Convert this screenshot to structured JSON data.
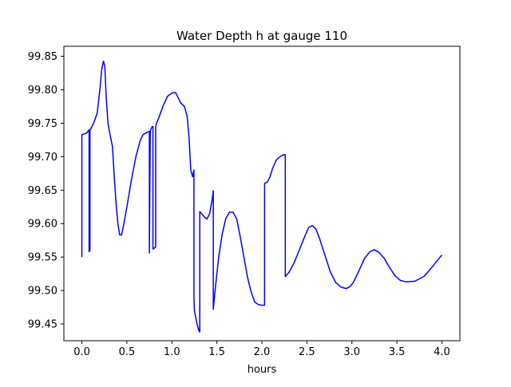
{
  "chart_data": {
    "type": "line",
    "title": "Water Depth h at gauge 110",
    "xlabel": "hours",
    "ylabel": "",
    "xlim": [
      -0.2,
      4.2
    ],
    "ylim": [
      99.425,
      99.865
    ],
    "xticks": [
      0.0,
      0.5,
      1.0,
      1.5,
      2.0,
      2.5,
      3.0,
      3.5,
      4.0
    ],
    "xtick_labels": [
      "0.0",
      "0.5",
      "1.0",
      "1.5",
      "2.0",
      "2.5",
      "3.0",
      "3.5",
      "4.0"
    ],
    "yticks": [
      99.45,
      99.5,
      99.55,
      99.6,
      99.65,
      99.7,
      99.75,
      99.8,
      99.85
    ],
    "ytick_labels": [
      "99.45",
      "99.50",
      "99.55",
      "99.60",
      "99.65",
      "99.70",
      "99.75",
      "99.80",
      "99.85"
    ],
    "grid": false,
    "legend": "none",
    "series": [
      {
        "color": "#0000ff",
        "x": [
          0.0,
          0.0,
          0.05,
          0.08,
          0.08,
          0.09,
          0.09,
          0.1,
          0.13,
          0.17,
          0.2,
          0.22,
          0.24,
          0.255,
          0.27,
          0.29,
          0.31,
          0.34,
          0.36,
          0.38,
          0.4,
          0.42,
          0.44,
          0.46,
          0.48,
          0.5,
          0.55,
          0.6,
          0.65,
          0.68,
          0.72,
          0.75,
          0.75,
          0.76,
          0.78,
          0.79,
          0.79,
          0.82,
          0.82,
          0.83,
          0.86,
          0.9,
          0.95,
          1.0,
          1.04,
          1.07,
          1.1,
          1.14,
          1.17,
          1.19,
          1.21,
          1.23,
          1.245,
          1.245,
          1.25,
          1.28,
          1.3,
          1.31,
          1.31,
          1.33,
          1.36,
          1.39,
          1.42,
          1.45,
          1.46,
          1.46,
          1.48,
          1.52,
          1.56,
          1.6,
          1.64,
          1.68,
          1.72,
          1.76,
          1.8,
          1.84,
          1.88,
          1.92,
          1.96,
          2.0,
          2.02,
          2.03,
          2.03,
          2.06,
          2.09,
          2.12,
          2.16,
          2.2,
          2.24,
          2.26,
          2.26,
          2.3,
          2.36,
          2.42,
          2.48,
          2.52,
          2.56,
          2.6,
          2.64,
          2.7,
          2.76,
          2.82,
          2.88,
          2.94,
          2.98,
          3.02,
          3.08,
          3.14,
          3.2,
          3.25,
          3.3,
          3.36,
          3.42,
          3.48,
          3.54,
          3.6,
          3.7,
          3.8,
          3.86,
          3.92,
          3.98,
          4.0
        ],
        "y": [
          99.55,
          99.733,
          99.735,
          99.74,
          99.558,
          99.56,
          99.74,
          99.742,
          99.75,
          99.765,
          99.8,
          99.83,
          99.843,
          99.835,
          99.79,
          99.75,
          99.735,
          99.715,
          99.67,
          99.63,
          99.6,
          99.583,
          99.583,
          99.595,
          99.61,
          99.625,
          99.665,
          99.7,
          99.725,
          99.733,
          99.736,
          99.738,
          99.556,
          99.738,
          99.745,
          99.745,
          99.562,
          99.565,
          99.745,
          99.75,
          99.76,
          99.775,
          99.79,
          99.795,
          99.796,
          99.788,
          99.78,
          99.775,
          99.76,
          99.73,
          99.68,
          99.67,
          99.68,
          99.492,
          99.47,
          99.45,
          99.44,
          99.438,
          99.618,
          99.615,
          99.61,
          99.607,
          99.615,
          99.638,
          99.649,
          99.472,
          99.5,
          99.55,
          99.585,
          99.608,
          99.617,
          99.617,
          99.607,
          99.58,
          99.55,
          99.52,
          99.498,
          99.483,
          99.479,
          99.478,
          99.478,
          99.478,
          99.66,
          99.662,
          99.67,
          99.683,
          99.695,
          99.7,
          99.703,
          99.703,
          99.521,
          99.527,
          99.542,
          99.562,
          99.582,
          99.594,
          99.597,
          99.592,
          99.578,
          99.553,
          99.528,
          99.512,
          99.505,
          99.503,
          99.506,
          99.513,
          99.53,
          99.548,
          99.558,
          99.561,
          99.557,
          99.548,
          99.534,
          99.522,
          99.515,
          99.513,
          99.514,
          99.521,
          99.53,
          99.54,
          99.55,
          99.553
        ]
      }
    ]
  }
}
